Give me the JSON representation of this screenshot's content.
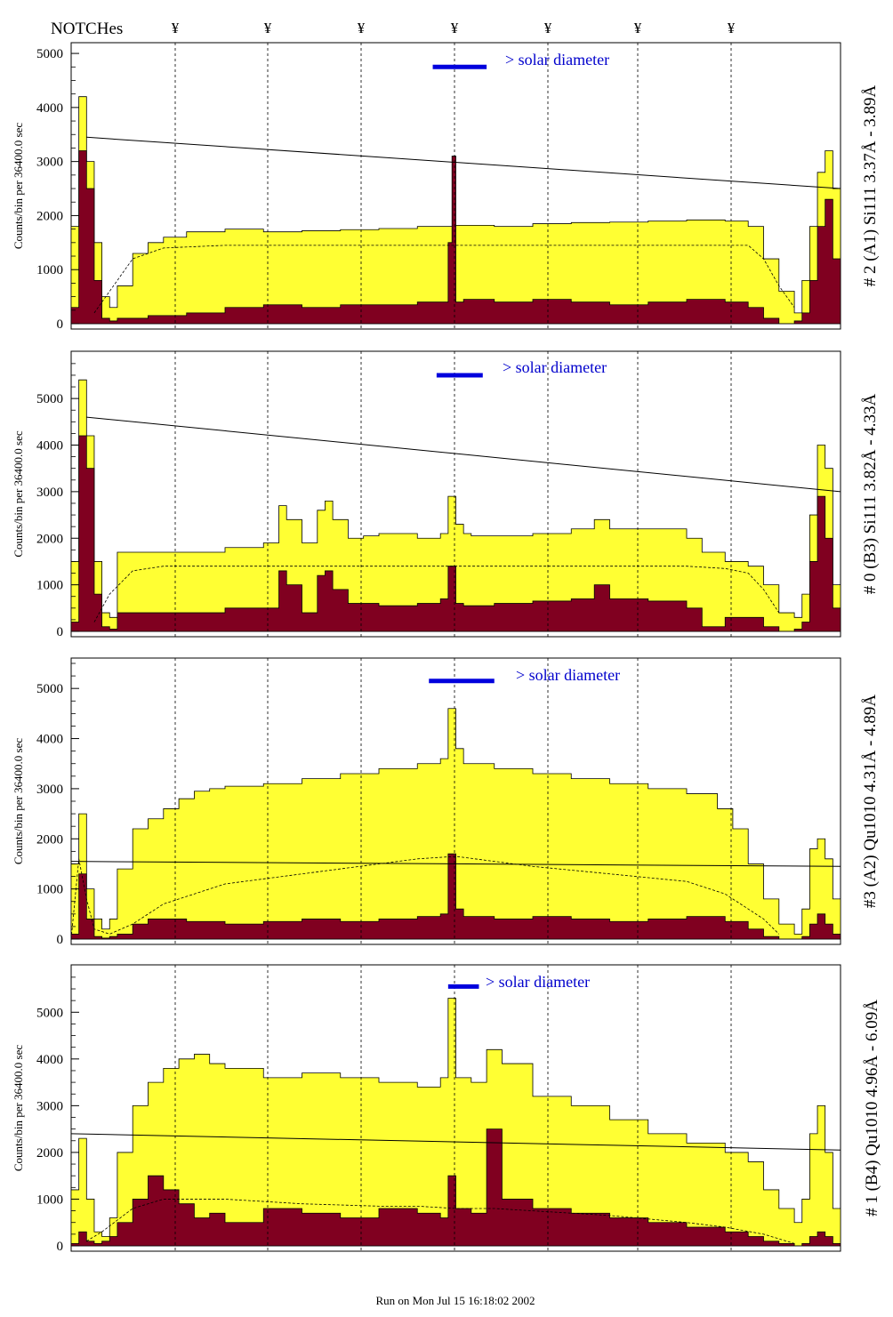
{
  "header": {
    "notches_label": "NOTCHes",
    "notch_symbol": "¥",
    "notch_count": 7
  },
  "footer": {
    "run_text": "Run on Mon Jul 15 16:18:02 2002"
  },
  "colors": {
    "fill_light": "#ffff33",
    "fill_dark": "#800020",
    "bar_blue": "#0000dd",
    "text_blue": "#0000cc"
  },
  "chart_data": [
    {
      "type": "area",
      "panel": 1,
      "title": "# 2 (A1) Si111  3.37Å - 3.89Å",
      "ylabel": "Counts/bin per  36400.0 sec",
      "annotation": "> solar diameter",
      "ylim": [
        0,
        5100
      ],
      "yticks": [
        0,
        1000,
        2000,
        3000,
        4000,
        5000
      ],
      "x_range": [
        0,
        100
      ],
      "series": [
        {
          "role": "envelope",
          "color": "#ffff33",
          "x": [
            0,
            1,
            2,
            3,
            4,
            5,
            6,
            8,
            10,
            12,
            15,
            20,
            25,
            30,
            35,
            40,
            45,
            50,
            55,
            60,
            65,
            70,
            75,
            80,
            85,
            88,
            90,
            92,
            94,
            95,
            96,
            97,
            98,
            99,
            100
          ],
          "y": [
            1800,
            4200,
            3000,
            1500,
            500,
            300,
            700,
            1300,
            1500,
            1600,
            1700,
            1750,
            1700,
            1720,
            1740,
            1760,
            1800,
            1820,
            1800,
            1850,
            1870,
            1880,
            1900,
            1920,
            1900,
            1800,
            1200,
            600,
            200,
            800,
            1800,
            2800,
            3200,
            2500,
            0
          ]
        },
        {
          "role": "core",
          "color": "#800020",
          "x": [
            0,
            1,
            2,
            3,
            4,
            5,
            6,
            8,
            10,
            15,
            20,
            25,
            30,
            35,
            40,
            45,
            48,
            49,
            49.5,
            50,
            51,
            55,
            60,
            65,
            70,
            75,
            80,
            85,
            88,
            90,
            92,
            94,
            95,
            96,
            97,
            98,
            99,
            100
          ],
          "y": [
            300,
            3200,
            2500,
            800,
            100,
            50,
            100,
            100,
            150,
            200,
            300,
            350,
            300,
            350,
            350,
            400,
            400,
            1500,
            3100,
            400,
            450,
            400,
            450,
            400,
            350,
            400,
            450,
            400,
            300,
            100,
            0,
            50,
            200,
            800,
            1800,
            2300,
            1200,
            0
          ]
        }
      ],
      "smooth_dashed": {
        "x": [
          3,
          5,
          8,
          12,
          20,
          40,
          60,
          80,
          88,
          90,
          92,
          94
        ],
        "y": [
          200,
          600,
          1200,
          1400,
          1450,
          1450,
          1450,
          1450,
          1450,
          1200,
          700,
          300
        ]
      },
      "trend_line": {
        "x": [
          2,
          100
        ],
        "y": [
          3450,
          2500
        ]
      },
      "solar_bar": {
        "x": [
          47,
          54
        ],
        "y": 4750
      }
    },
    {
      "type": "area",
      "panel": 2,
      "title": "# 0 (B3) Si111  3.82Å - 4.33Å",
      "ylabel": "Counts/bin per  36400.0 sec",
      "annotation": "> solar diameter",
      "ylim": [
        0,
        5900
      ],
      "yticks": [
        0,
        1000,
        2000,
        3000,
        4000,
        5000
      ],
      "x_range": [
        0,
        100
      ],
      "series": [
        {
          "role": "envelope",
          "color": "#ffff33",
          "x": [
            0,
            1,
            2,
            3,
            4,
            5,
            6,
            10,
            20,
            25,
            27,
            28,
            30,
            32,
            33,
            34,
            36,
            38,
            40,
            45,
            48,
            49,
            50,
            51,
            52,
            55,
            60,
            65,
            68,
            70,
            75,
            80,
            82,
            85,
            88,
            90,
            92,
            94,
            95,
            96,
            97,
            98,
            99,
            100
          ],
          "y": [
            1500,
            5400,
            4200,
            1500,
            400,
            300,
            1700,
            1700,
            1800,
            1900,
            2700,
            2400,
            1900,
            2600,
            2800,
            2400,
            2000,
            2050,
            2100,
            2000,
            2100,
            2900,
            2300,
            2100,
            2050,
            2050,
            2100,
            2200,
            2400,
            2200,
            2200,
            2000,
            1700,
            1500,
            1400,
            1000,
            400,
            300,
            800,
            2500,
            4000,
            3500,
            1000,
            0
          ]
        },
        {
          "role": "core",
          "color": "#800020",
          "x": [
            0,
            1,
            2,
            3,
            4,
            5,
            6,
            10,
            20,
            25,
            27,
            28,
            30,
            32,
            33,
            34,
            36,
            40,
            45,
            48,
            49,
            50,
            51,
            55,
            60,
            65,
            68,
            70,
            75,
            80,
            82,
            85,
            90,
            92,
            94,
            95,
            96,
            97,
            98,
            99,
            100
          ],
          "y": [
            200,
            4200,
            3500,
            800,
            100,
            50,
            400,
            400,
            500,
            500,
            1300,
            1000,
            400,
            1200,
            1300,
            900,
            600,
            550,
            600,
            700,
            1400,
            600,
            550,
            600,
            650,
            700,
            1000,
            700,
            650,
            500,
            100,
            300,
            100,
            0,
            50,
            200,
            1500,
            2900,
            2000,
            500,
            0
          ]
        }
      ],
      "smooth_dashed": {
        "x": [
          3,
          5,
          8,
          12,
          20,
          40,
          60,
          80,
          85,
          88,
          90,
          92
        ],
        "y": [
          200,
          800,
          1300,
          1400,
          1400,
          1400,
          1400,
          1400,
          1350,
          1250,
          900,
          400
        ]
      },
      "trend_line": {
        "x": [
          2,
          100
        ],
        "y": [
          4600,
          3000
        ]
      },
      "solar_bar": {
        "x": [
          47.5,
          53.5
        ],
        "y": 5500
      }
    },
    {
      "type": "area",
      "panel": 3,
      "title": "#3 (A2) Qu1010  4.31Å - 4.89Å",
      "ylabel": "Counts/bin per  36400.0 sec",
      "annotation": "> solar diameter",
      "ylim": [
        0,
        5500
      ],
      "yticks": [
        0,
        1000,
        2000,
        3000,
        4000,
        5000
      ],
      "x_range": [
        0,
        100
      ],
      "series": [
        {
          "role": "envelope",
          "color": "#ffff33",
          "x": [
            0,
            1,
            2,
            3,
            4,
            5,
            6,
            8,
            10,
            12,
            14,
            16,
            18,
            20,
            25,
            30,
            35,
            40,
            45,
            48,
            49,
            50,
            51,
            55,
            60,
            65,
            70,
            75,
            80,
            84,
            86,
            88,
            90,
            92,
            94,
            95,
            96,
            97,
            98,
            99,
            100
          ],
          "y": [
            1500,
            2500,
            1000,
            400,
            200,
            400,
            1400,
            2200,
            2400,
            2600,
            2800,
            2950,
            3000,
            3050,
            3100,
            3200,
            3300,
            3400,
            3500,
            3600,
            4600,
            3800,
            3500,
            3400,
            3300,
            3200,
            3100,
            3000,
            2900,
            2600,
            2200,
            1500,
            800,
            300,
            100,
            600,
            1800,
            2000,
            1600,
            800,
            0
          ]
        },
        {
          "role": "core",
          "color": "#800020",
          "x": [
            0,
            1,
            2,
            3,
            4,
            5,
            6,
            8,
            10,
            15,
            20,
            25,
            30,
            35,
            40,
            45,
            48,
            49,
            50,
            51,
            55,
            60,
            65,
            70,
            75,
            80,
            85,
            88,
            90,
            92,
            94,
            95,
            96,
            97,
            98,
            99,
            100
          ],
          "y": [
            100,
            1300,
            400,
            50,
            20,
            50,
            100,
            300,
            400,
            350,
            300,
            350,
            400,
            350,
            400,
            450,
            500,
            1700,
            600,
            450,
            400,
            450,
            400,
            350,
            400,
            450,
            350,
            200,
            50,
            0,
            0,
            50,
            300,
            500,
            300,
            100,
            0
          ]
        }
      ],
      "smooth_dashed": {
        "x": [
          0,
          1,
          2,
          3,
          5,
          8,
          12,
          20,
          30,
          40,
          45,
          50,
          55,
          60,
          70,
          80,
          85,
          90,
          92
        ],
        "y": [
          0,
          1600,
          800,
          200,
          100,
          300,
          700,
          1100,
          1300,
          1500,
          1600,
          1650,
          1550,
          1450,
          1300,
          1150,
          900,
          400,
          100
        ]
      },
      "trend_line": {
        "x": [
          0,
          100
        ],
        "y": [
          1550,
          1450
        ]
      },
      "solar_bar": {
        "x": [
          46.5,
          55
        ],
        "y": 5150
      }
    },
    {
      "type": "area",
      "panel": 4,
      "title": "# 1 (B4) Qu1010 4.96Å - 6.09Å",
      "ylabel": "Counts/bin per  36400.0 sec",
      "annotation": "> solar diameter",
      "ylim": [
        0,
        5900
      ],
      "yticks": [
        0,
        1000,
        2000,
        3000,
        4000,
        5000
      ],
      "x_range": [
        0,
        100
      ],
      "series": [
        {
          "role": "envelope",
          "color": "#ffff33",
          "x": [
            0,
            1,
            2,
            3,
            4,
            5,
            6,
            8,
            10,
            12,
            14,
            16,
            18,
            20,
            25,
            30,
            35,
            40,
            45,
            48,
            49,
            50,
            52,
            54,
            56,
            60,
            65,
            70,
            75,
            80,
            85,
            88,
            90,
            92,
            94,
            95,
            96,
            97,
            98,
            99,
            100
          ],
          "y": [
            1200,
            2300,
            1000,
            300,
            200,
            600,
            2000,
            3000,
            3500,
            3800,
            4000,
            4100,
            3900,
            3800,
            3600,
            3700,
            3600,
            3500,
            3400,
            3600,
            5300,
            3600,
            3500,
            4200,
            3900,
            3200,
            3000,
            2700,
            2400,
            2200,
            2000,
            1800,
            1200,
            800,
            500,
            1000,
            2400,
            3000,
            2000,
            800,
            0
          ]
        },
        {
          "role": "core",
          "color": "#800020",
          "x": [
            0,
            1,
            2,
            3,
            4,
            5,
            6,
            8,
            10,
            12,
            14,
            16,
            18,
            20,
            25,
            30,
            35,
            40,
            45,
            48,
            49,
            50,
            52,
            54,
            56,
            60,
            65,
            70,
            75,
            80,
            85,
            88,
            90,
            92,
            94,
            95,
            96,
            97,
            98,
            99,
            100
          ],
          "y": [
            50,
            300,
            100,
            50,
            100,
            200,
            500,
            1000,
            1500,
            1200,
            900,
            600,
            700,
            500,
            800,
            700,
            600,
            800,
            700,
            600,
            1500,
            800,
            700,
            2500,
            1000,
            800,
            700,
            600,
            500,
            400,
            300,
            200,
            100,
            50,
            0,
            50,
            200,
            300,
            200,
            50,
            0
          ]
        }
      ],
      "smooth_dashed": {
        "x": [
          2,
          4,
          8,
          12,
          20,
          30,
          40,
          45,
          50,
          55,
          60,
          70,
          80,
          85,
          90,
          92,
          94
        ],
        "y": [
          100,
          300,
          800,
          1000,
          1000,
          900,
          850,
          850,
          800,
          800,
          750,
          650,
          500,
          400,
          250,
          150,
          50
        ]
      },
      "trend_line": {
        "x": [
          0,
          100
        ],
        "y": [
          2400,
          2050
        ]
      },
      "solar_bar": {
        "x": [
          49,
          53
        ],
        "y": 5550
      }
    }
  ]
}
